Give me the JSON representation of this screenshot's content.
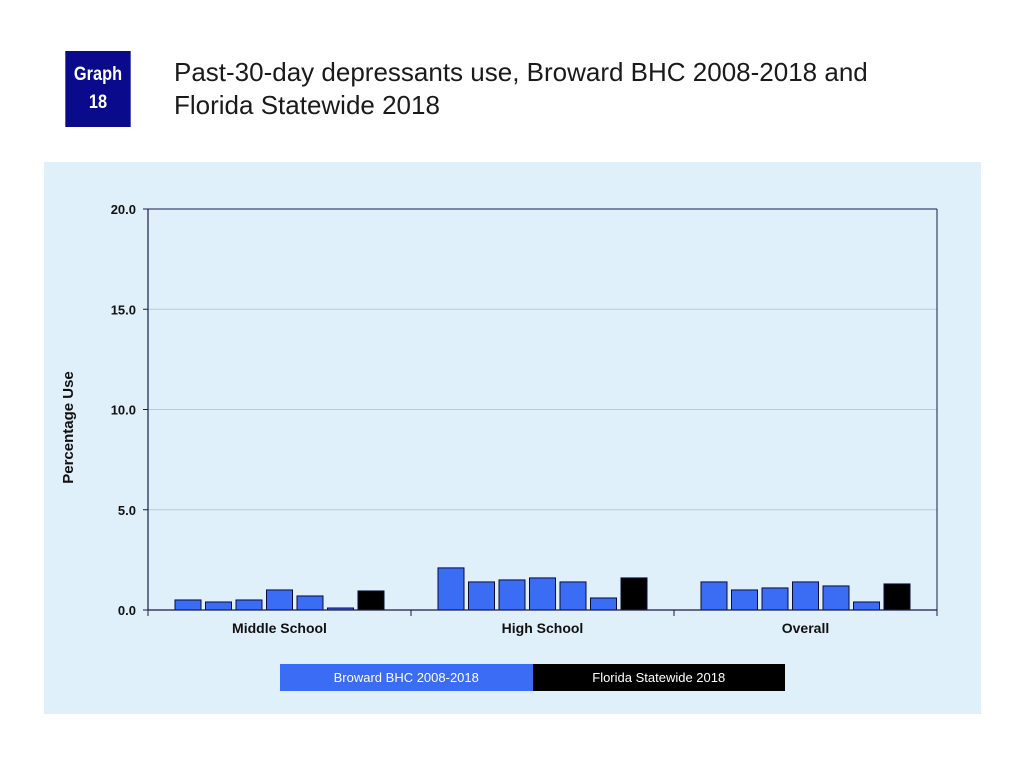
{
  "badge": {
    "line1": "Graph",
    "line2": "18"
  },
  "page_title": {
    "line1": "Past-30-day depressants use, Broward BHC 2008-2018 and",
    "line2": "Florida Statewide 2018"
  },
  "colors": {
    "broward": "#3a6cf4",
    "florida": "#000000",
    "panel_bg": "#dff0fb",
    "badge_bg": "#0a0a8c"
  },
  "chart_data": {
    "type": "bar",
    "title": "Past-30-day depressants use, Broward BHC 2008-2018 and Florida Statewide 2018",
    "xlabel": "",
    "ylabel": "Percentage Use",
    "ylim": [
      0,
      20
    ],
    "yticks": [
      "0.0",
      "5.0",
      "10.0",
      "15.0",
      "20.0"
    ],
    "grid": true,
    "categories": [
      "Middle School",
      "High School",
      "Overall"
    ],
    "series": [
      {
        "group": "broward",
        "values": [
          0.5,
          2.1,
          1.4
        ]
      },
      {
        "group": "broward",
        "values": [
          0.4,
          1.4,
          1.0
        ]
      },
      {
        "group": "broward",
        "values": [
          0.5,
          1.5,
          1.1
        ]
      },
      {
        "group": "broward",
        "values": [
          1.0,
          1.6,
          1.4
        ]
      },
      {
        "group": "broward",
        "values": [
          0.7,
          1.4,
          1.2
        ]
      },
      {
        "group": "broward",
        "values": [
          0.1,
          0.6,
          0.4
        ]
      },
      {
        "group": "florida",
        "values": [
          0.95,
          1.6,
          1.3
        ]
      }
    ],
    "legend": {
      "position": "bottom",
      "entries": [
        "Broward BHC 2008-2018",
        "Florida Statewide 2018"
      ]
    }
  }
}
